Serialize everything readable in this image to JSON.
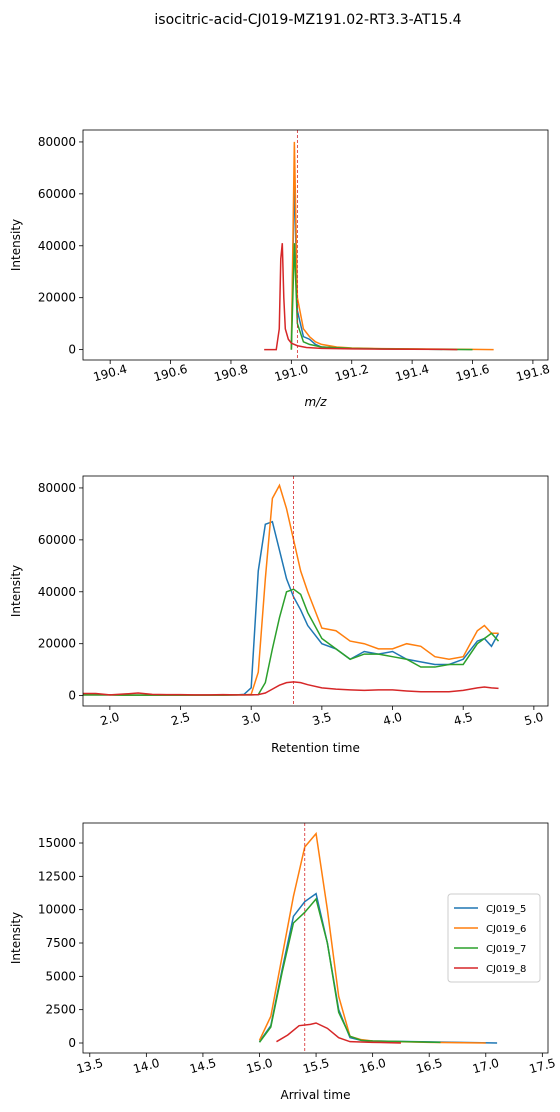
{
  "title": "isocitric-acid-CJ019-MZ191.02-RT3.3-AT15.4",
  "chart_data": [
    {
      "type": "line",
      "xlabel": "m/z",
      "ylabel": "Intensity",
      "vline": 191.02,
      "vline_color": "#d62728",
      "xlim": [
        190.31,
        191.85
      ],
      "ylim": [
        -4000,
        84600
      ],
      "xticks": [
        190.4,
        190.6,
        190.8,
        {
          "value": 191.0,
          "label": "191.0"
        },
        191.2,
        191.4,
        191.6,
        191.8
      ],
      "yticks": [
        0,
        20000,
        40000,
        60000,
        80000
      ],
      "series": [
        {
          "name": "CJ019_5",
          "color": "#1f77b4",
          "x": [
            191.0,
            191.01,
            191.015,
            191.02,
            191.04,
            191.06,
            191.08,
            191.1,
            191.2,
            191.3,
            191.4,
            191.5
          ],
          "values": [
            0,
            67000,
            40000,
            15000,
            5000,
            4000,
            2000,
            1000,
            500,
            300,
            200,
            100
          ]
        },
        {
          "name": "CJ019_6",
          "color": "#ff7f0e",
          "x": [
            191.0,
            191.01,
            191.015,
            191.02,
            191.04,
            191.06,
            191.08,
            191.1,
            191.15,
            191.2,
            191.3,
            191.4,
            191.5,
            191.6,
            191.67
          ],
          "values": [
            0,
            80000,
            50000,
            20000,
            8000,
            5000,
            3000,
            2000,
            1000,
            600,
            400,
            300,
            200,
            100,
            0
          ]
        },
        {
          "name": "CJ019_7",
          "color": "#2ca02c",
          "x": [
            191.0,
            191.01,
            191.015,
            191.02,
            191.04,
            191.06,
            191.1,
            191.2,
            191.3,
            191.4,
            191.5,
            191.6
          ],
          "values": [
            0,
            41000,
            25000,
            10000,
            3000,
            2000,
            1000,
            500,
            300,
            200,
            100,
            0
          ]
        },
        {
          "name": "CJ019_8",
          "color": "#d62728",
          "x": [
            190.91,
            190.95,
            190.96,
            190.965,
            190.97,
            190.975,
            190.98,
            190.99,
            191.0,
            191.02,
            191.05,
            191.1,
            191.2,
            191.3,
            191.4,
            191.5,
            191.55
          ],
          "values": [
            0,
            0,
            8000,
            35000,
            41000,
            20000,
            8000,
            4000,
            2500,
            1500,
            800,
            500,
            300,
            200,
            150,
            100,
            0
          ]
        }
      ]
    },
    {
      "type": "line",
      "xlabel": "Retention time",
      "ylabel": "Intensity",
      "vline": 3.3,
      "vline_color": "#d62728",
      "xlim": [
        1.81,
        5.1
      ],
      "ylim": [
        -4000,
        84600
      ],
      "xticks": [
        {
          "value": 2.0,
          "label": "2.0"
        },
        2.5,
        {
          "value": 3.0,
          "label": "3.0"
        },
        3.5,
        {
          "value": 4.0,
          "label": "4.0"
        },
        4.5,
        {
          "value": 5.0,
          "label": "5.0"
        }
      ],
      "yticks": [
        0,
        20000,
        40000,
        60000,
        80000
      ],
      "series": [
        {
          "name": "CJ019_5",
          "color": "#1f77b4",
          "x": [
            1.8,
            1.9,
            2.0,
            2.1,
            2.2,
            2.3,
            2.4,
            2.5,
            2.6,
            2.7,
            2.8,
            2.9,
            2.95,
            3.0,
            3.05,
            3.1,
            3.15,
            3.2,
            3.25,
            3.3,
            3.35,
            3.4,
            3.5,
            3.6,
            3.7,
            3.8,
            3.9,
            4.0,
            4.1,
            4.2,
            4.3,
            4.4,
            4.5,
            4.6,
            4.65,
            4.7,
            4.75
          ],
          "values": [
            300,
            300,
            300,
            200,
            200,
            200,
            200,
            200,
            200,
            200,
            200,
            300,
            500,
            3000,
            48000,
            66000,
            67000,
            56000,
            45000,
            38000,
            33000,
            27000,
            20000,
            18000,
            14000,
            17000,
            16000,
            17000,
            14000,
            13000,
            12000,
            12000,
            14000,
            21000,
            22000,
            19000,
            24000
          ]
        },
        {
          "name": "CJ019_6",
          "color": "#ff7f0e",
          "x": [
            1.8,
            1.9,
            2.0,
            2.1,
            2.2,
            2.3,
            2.4,
            2.5,
            2.6,
            2.7,
            2.8,
            2.9,
            2.95,
            3.0,
            3.05,
            3.1,
            3.15,
            3.2,
            3.25,
            3.3,
            3.35,
            3.4,
            3.5,
            3.6,
            3.7,
            3.8,
            3.9,
            4.0,
            4.1,
            4.2,
            4.3,
            4.4,
            4.5,
            4.6,
            4.65,
            4.7,
            4.75
          ],
          "values": [
            300,
            300,
            300,
            200,
            200,
            200,
            200,
            200,
            200,
            200,
            200,
            300,
            300,
            500,
            9000,
            45000,
            76000,
            81000,
            72000,
            60000,
            48000,
            40000,
            26000,
            25000,
            21000,
            20000,
            18000,
            18000,
            20000,
            19000,
            15000,
            14000,
            15000,
            25000,
            27000,
            24000,
            24000
          ]
        },
        {
          "name": "CJ019_7",
          "color": "#2ca02c",
          "x": [
            1.8,
            1.9,
            2.0,
            2.1,
            2.2,
            2.3,
            2.4,
            2.5,
            2.6,
            2.7,
            2.8,
            2.9,
            2.95,
            3.0,
            3.05,
            3.1,
            3.15,
            3.2,
            3.25,
            3.3,
            3.35,
            3.4,
            3.5,
            3.6,
            3.7,
            3.8,
            3.9,
            4.0,
            4.1,
            4.2,
            4.3,
            4.4,
            4.5,
            4.6,
            4.65,
            4.7,
            4.75
          ],
          "values": [
            300,
            300,
            300,
            200,
            200,
            200,
            200,
            200,
            200,
            200,
            200,
            300,
            300,
            300,
            400,
            5000,
            18000,
            30000,
            40000,
            41000,
            39000,
            32000,
            22000,
            18000,
            14000,
            16000,
            16000,
            15000,
            14000,
            11000,
            11000,
            12000,
            12000,
            20000,
            22000,
            24000,
            21000
          ]
        },
        {
          "name": "CJ019_8",
          "color": "#d62728",
          "x": [
            1.8,
            1.9,
            2.0,
            2.1,
            2.2,
            2.3,
            2.4,
            2.5,
            2.6,
            2.7,
            2.8,
            2.9,
            2.95,
            3.0,
            3.05,
            3.1,
            3.15,
            3.2,
            3.25,
            3.3,
            3.35,
            3.4,
            3.5,
            3.6,
            3.7,
            3.8,
            3.9,
            4.0,
            4.1,
            4.2,
            4.3,
            4.4,
            4.5,
            4.6,
            4.65,
            4.7,
            4.75
          ],
          "values": [
            800,
            800,
            300,
            600,
            1000,
            500,
            400,
            400,
            300,
            300,
            400,
            300,
            300,
            300,
            400,
            1000,
            2500,
            4000,
            5000,
            5300,
            5000,
            4200,
            3000,
            2500,
            2200,
            2000,
            2200,
            2200,
            1800,
            1500,
            1500,
            1500,
            2000,
            3000,
            3300,
            3000,
            2800
          ]
        }
      ]
    },
    {
      "type": "line",
      "xlabel": "Arrival time",
      "ylabel": "Intensity",
      "vline": 15.4,
      "vline_color": "#d62728",
      "legend": "center right",
      "xlim": [
        13.44,
        17.55
      ],
      "ylim": [
        -750,
        16500
      ],
      "xticks": [
        13.5,
        {
          "value": 14.0,
          "label": "14.0"
        },
        14.5,
        {
          "value": 15.0,
          "label": "15.0"
        },
        15.5,
        {
          "value": 16.0,
          "label": "16.0"
        },
        16.5,
        {
          "value": 17.0,
          "label": "17.0"
        },
        17.5
      ],
      "yticks": [
        0,
        2500,
        5000,
        7500,
        10000,
        12500,
        15000
      ],
      "series": [
        {
          "name": "CJ019_5",
          "color": "#1f77b4",
          "x": [
            15.0,
            15.1,
            15.2,
            15.3,
            15.4,
            15.5,
            15.6,
            15.7,
            15.8,
            15.9,
            16.0,
            16.5,
            17.1
          ],
          "values": [
            100,
            1300,
            5500,
            9500,
            10600,
            11200,
            7500,
            2500,
            400,
            200,
            150,
            80,
            0
          ]
        },
        {
          "name": "CJ019_6",
          "color": "#ff7f0e",
          "x": [
            15.0,
            15.1,
            15.2,
            15.3,
            15.4,
            15.5,
            15.6,
            15.7,
            15.8,
            15.9,
            16.0,
            16.2,
            16.5,
            17.0
          ],
          "values": [
            200,
            2000,
            6500,
            11000,
            14700,
            15700,
            10000,
            3500,
            500,
            250,
            150,
            100,
            50,
            0
          ]
        },
        {
          "name": "CJ019_7",
          "color": "#2ca02c",
          "x": [
            15.0,
            15.1,
            15.2,
            15.3,
            15.4,
            15.5,
            15.6,
            15.7,
            15.8,
            15.9,
            16.0,
            16.6
          ],
          "values": [
            50,
            1200,
            5300,
            9000,
            9800,
            10800,
            7500,
            2300,
            500,
            200,
            150,
            50
          ]
        },
        {
          "name": "CJ019_8",
          "color": "#d62728",
          "x": [
            15.15,
            15.25,
            15.35,
            15.45,
            15.5,
            15.6,
            15.7,
            15.8,
            16.0,
            16.25
          ],
          "values": [
            100,
            600,
            1300,
            1400,
            1500,
            1100,
            400,
            100,
            50,
            0
          ]
        }
      ]
    }
  ]
}
